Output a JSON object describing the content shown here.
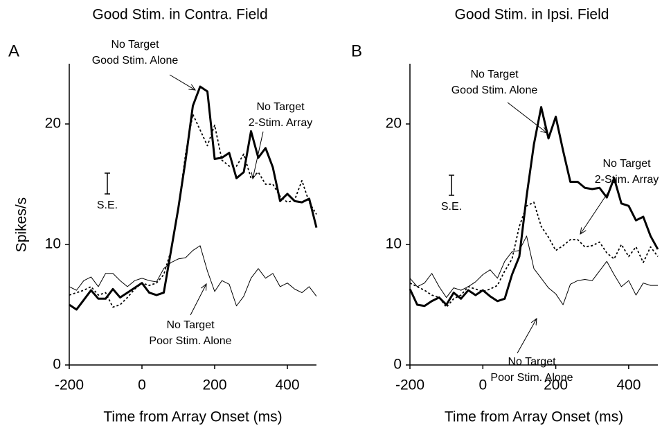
{
  "chart_data": [
    {
      "type": "line",
      "panel": "A",
      "title": "Good Stim. in Contra. Field",
      "ylabel": "Spikes/s",
      "xlabel": "Time from Array Onset (ms)",
      "xlim": [
        -200,
        480
      ],
      "ylim": [
        0,
        25
      ],
      "xticks": [
        -200,
        0,
        200,
        400
      ],
      "yticks": [
        0,
        10,
        20
      ],
      "se_label": "S.E.",
      "x": [
        -200,
        -180,
        -160,
        -140,
        -120,
        -100,
        -80,
        -60,
        -40,
        -20,
        0,
        20,
        40,
        60,
        80,
        100,
        120,
        140,
        160,
        180,
        200,
        220,
        240,
        260,
        280,
        300,
        320,
        340,
        360,
        380,
        400,
        420,
        440,
        460,
        480
      ],
      "series": [
        {
          "name": "No Target Good Stim. Alone",
          "color": "#000000",
          "style": "thick",
          "values": [
            5.0,
            4.6,
            5.4,
            6.2,
            5.5,
            5.5,
            6.3,
            5.6,
            6.0,
            6.4,
            6.8,
            6.0,
            5.8,
            6.0,
            9.5,
            13,
            17,
            21.5,
            23.1,
            22.7,
            17.1,
            17.2,
            17.6,
            15.5,
            16.0,
            19.4,
            17.2,
            18.0,
            16.4,
            13.6,
            14.2,
            13.6,
            13.5,
            13.8,
            11.4
          ]
        },
        {
          "name": "No Target 2-Stim. Array",
          "color": "#000000",
          "style": "dotted",
          "values": [
            5.8,
            6.0,
            6.2,
            6.5,
            5.8,
            6.0,
            4.8,
            5.0,
            5.6,
            6.3,
            6.8,
            6.6,
            6.8,
            7.5,
            9.5,
            13,
            17.5,
            20.8,
            19.5,
            18.2,
            19.9,
            17.0,
            16.5,
            16.5,
            17.5,
            15.5,
            16.0,
            15.0,
            15.0,
            14.0,
            13.5,
            13.7,
            15.3,
            13.5,
            12.5
          ]
        },
        {
          "name": "No Target Poor Stim. Alone",
          "color": "#000000",
          "style": "thin",
          "values": [
            6.5,
            6.2,
            7.0,
            7.3,
            6.5,
            7.6,
            7.6,
            7.0,
            6.5,
            7.0,
            7.2,
            7.0,
            6.9,
            8.0,
            8.5,
            8.8,
            8.9,
            9.5,
            9.9,
            7.8,
            6.1,
            7.0,
            6.7,
            4.9,
            5.7,
            7.2,
            8.0,
            7.2,
            7.6,
            6.5,
            6.8,
            6.3,
            6.0,
            6.5,
            5.7
          ]
        }
      ],
      "annotations": [
        [
          "No Target",
          "Good Stim. Alone"
        ],
        [
          "No Target",
          "2-Stim. Array"
        ],
        [
          "No Target",
          "Poor Stim. Alone"
        ]
      ]
    },
    {
      "type": "line",
      "panel": "B",
      "title": "Good Stim. in Ipsi. Field",
      "xlabel": "Time from Array Onset (ms)",
      "xlim": [
        -200,
        480
      ],
      "ylim": [
        0,
        25
      ],
      "xticks": [
        -200,
        0,
        200,
        400
      ],
      "yticks": [
        0,
        10,
        20
      ],
      "se_label": "S.E.",
      "x": [
        -200,
        -180,
        -160,
        -140,
        -120,
        -100,
        -80,
        -60,
        -40,
        -20,
        0,
        20,
        40,
        60,
        80,
        100,
        120,
        140,
        160,
        180,
        200,
        220,
        240,
        260,
        280,
        300,
        320,
        340,
        360,
        380,
        400,
        420,
        440,
        460,
        480
      ],
      "series": [
        {
          "name": "No Target Good Stim. Alone",
          "color": "#000000",
          "style": "thick",
          "values": [
            6.3,
            5.0,
            4.9,
            5.3,
            5.6,
            5.0,
            6.0,
            5.5,
            6.2,
            5.8,
            6.2,
            5.7,
            5.3,
            5.5,
            7.5,
            9.0,
            14,
            18.3,
            21.4,
            18.8,
            20.6,
            17.8,
            15.2,
            15.2,
            14.7,
            14.6,
            14.7,
            13.9,
            15.5,
            13.4,
            13.2,
            12.0,
            12.3,
            10.7,
            9.6
          ]
        },
        {
          "name": "No Target 2-Stim. Array",
          "color": "#000000",
          "style": "dotted",
          "values": [
            6.8,
            6.5,
            6.2,
            5.8,
            5.6,
            4.8,
            5.5,
            5.8,
            6.5,
            6.3,
            6.1,
            6.3,
            6.6,
            7.8,
            8.8,
            11.5,
            13.2,
            13.5,
            11.5,
            10.6,
            9.5,
            9.9,
            10.4,
            10.4,
            9.8,
            9.9,
            10.2,
            9.3,
            8.8,
            10.0,
            9.0,
            9.8,
            8.5,
            9.8,
            9.0
          ]
        },
        {
          "name": "No Target Poor Stim. Alone",
          "color": "#000000",
          "style": "thin",
          "values": [
            7.2,
            6.5,
            6.8,
            7.6,
            6.5,
            5.6,
            6.4,
            6.2,
            6.5,
            6.9,
            7.5,
            7.9,
            7.2,
            8.6,
            9.4,
            9.5,
            10.7,
            8.0,
            7.2,
            6.4,
            5.9,
            5.0,
            6.7,
            7.0,
            7.1,
            7.0,
            7.8,
            8.6,
            7.5,
            6.5,
            7.0,
            5.8,
            6.8,
            6.6,
            6.6
          ]
        }
      ],
      "annotations": [
        [
          "No Target",
          "Good Stim. Alone"
        ],
        [
          "No Target",
          "2-Stim. Array"
        ],
        [
          "No Target",
          "Poor Stim. Alone"
        ]
      ]
    }
  ]
}
